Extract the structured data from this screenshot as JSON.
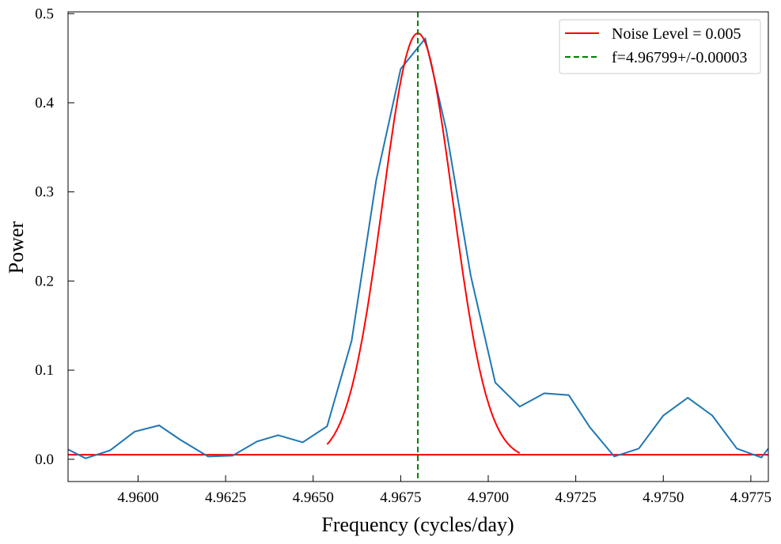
{
  "chart_data": {
    "type": "line",
    "xlabel": "Frequency (cycles/day)",
    "ylabel": "Power",
    "xlim": [
      4.958,
      4.978
    ],
    "ylim": [
      -0.025,
      0.502
    ],
    "x_ticks": [
      4.96,
      4.9625,
      4.965,
      4.9675,
      4.97,
      4.9725,
      4.975,
      4.9775
    ],
    "x_tick_labels": [
      "4.9600",
      "4.9625",
      "4.9650",
      "4.9675",
      "4.9700",
      "4.9725",
      "4.9750",
      "4.9775"
    ],
    "y_ticks": [
      0.0,
      0.1,
      0.2,
      0.3,
      0.4,
      0.5
    ],
    "y_tick_labels": [
      "0.0",
      "0.1",
      "0.2",
      "0.3",
      "0.4",
      "0.5"
    ],
    "grid": false,
    "legend_position": "top-right",
    "series": [
      {
        "color": "#1f77b4",
        "style": "solid",
        "x": [
          4.958,
          4.9585,
          4.9592,
          4.9599,
          4.9606,
          4.9612,
          4.962,
          4.9627,
          4.9634,
          4.964,
          4.9647,
          4.9654,
          4.9661,
          4.9668,
          4.9675,
          4.9682,
          4.9688,
          4.9695,
          4.9702,
          4.9709,
          4.9716,
          4.9723,
          4.9729,
          4.9736,
          4.9743,
          4.975,
          4.9757,
          4.9764,
          4.9771,
          4.9778,
          4.978
        ],
        "y": [
          0.011,
          0.001,
          0.01,
          0.031,
          0.038,
          0.022,
          0.003,
          0.004,
          0.02,
          0.027,
          0.019,
          0.037,
          0.133,
          0.313,
          0.438,
          0.472,
          0.37,
          0.206,
          0.086,
          0.059,
          0.074,
          0.072,
          0.036,
          0.003,
          0.012,
          0.049,
          0.069,
          0.049,
          0.012,
          0.002,
          0.012
        ]
      },
      {
        "name": "Noise Level = 0.005",
        "color": "#ff0000",
        "style": "solid",
        "x": [
          4.958,
          4.978
        ],
        "y": [
          0.005,
          0.005
        ]
      },
      {
        "color": "#ff0000",
        "style": "solid",
        "fit": {
          "amplitude": 0.478,
          "center": 4.96799,
          "sigma": 0.001,
          "x_range": [
            4.9654,
            4.9709
          ]
        }
      },
      {
        "name": "f=4.96799+/-0.00003",
        "color": "#008000",
        "style": "dashed",
        "vertical_x": 4.96799
      }
    ]
  }
}
